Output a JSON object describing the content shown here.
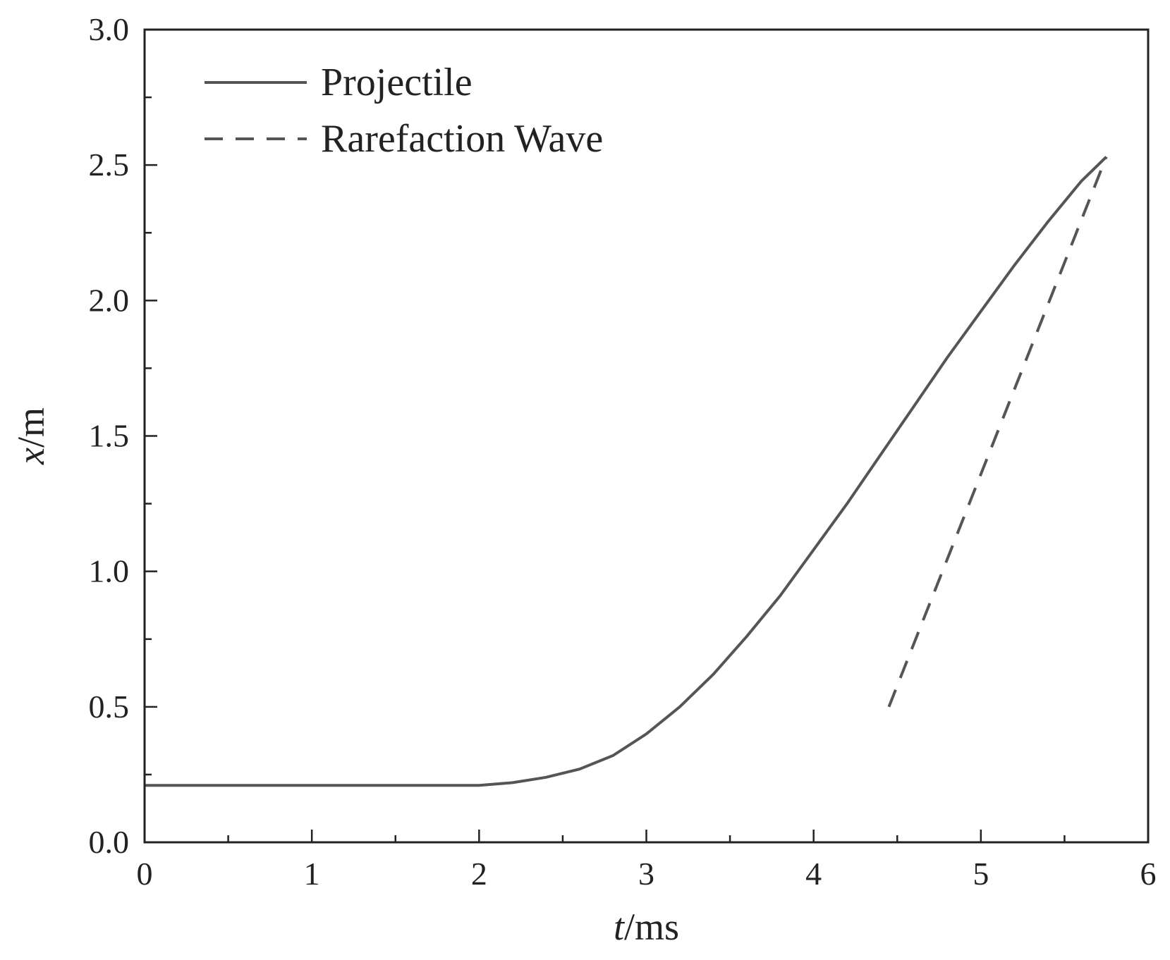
{
  "chart_data": {
    "type": "line",
    "title": "",
    "xlabel_italic": "t",
    "xlabel_unit": "/ms",
    "ylabel_italic": "x",
    "ylabel_unit": "/m",
    "xlim": [
      0,
      6
    ],
    "ylim": [
      0,
      3.0
    ],
    "xticks": [
      0,
      1,
      2,
      3,
      4,
      5,
      6
    ],
    "xtick_labels": [
      "0",
      "1",
      "2",
      "3",
      "4",
      "5",
      "6"
    ],
    "yticks": [
      0,
      0.5,
      1.0,
      1.5,
      2.0,
      2.5,
      3.0
    ],
    "ytick_labels": [
      "0.0",
      "0.5",
      "1.0",
      "1.5",
      "2.0",
      "2.5",
      "3.0"
    ],
    "grid": false,
    "legend_position": "top-left",
    "series": [
      {
        "name": "Projectile",
        "style": "solid",
        "color": "#555555",
        "x": [
          0,
          0.5,
          1.0,
          1.5,
          2.0,
          2.2,
          2.4,
          2.6,
          2.8,
          3.0,
          3.2,
          3.4,
          3.6,
          3.8,
          4.0,
          4.2,
          4.4,
          4.6,
          4.8,
          5.0,
          5.2,
          5.4,
          5.6,
          5.75
        ],
        "y": [
          0.21,
          0.21,
          0.21,
          0.21,
          0.21,
          0.22,
          0.24,
          0.27,
          0.32,
          0.4,
          0.5,
          0.62,
          0.76,
          0.91,
          1.08,
          1.25,
          1.43,
          1.61,
          1.79,
          1.96,
          2.13,
          2.29,
          2.44,
          2.53
        ]
      },
      {
        "name": "Rarefaction Wave",
        "style": "dashed",
        "color": "#555555",
        "x": [
          4.45,
          5.75
        ],
        "y": [
          0.5,
          2.53
        ]
      }
    ]
  }
}
